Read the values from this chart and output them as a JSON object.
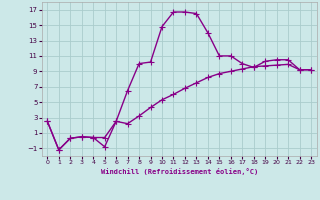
{
  "line1_x": [
    0,
    1,
    2,
    3,
    4,
    5,
    6,
    7,
    8,
    9,
    10,
    11,
    12,
    13,
    14,
    15,
    16,
    17,
    18,
    19,
    20,
    21,
    22,
    23
  ],
  "line1_y": [
    2.5,
    -1.2,
    0.3,
    0.5,
    0.4,
    -0.8,
    2.5,
    6.5,
    10.0,
    10.2,
    14.8,
    16.7,
    16.7,
    16.5,
    14.0,
    11.0,
    11.0,
    10.0,
    9.5,
    10.3,
    10.5,
    10.5,
    9.2,
    9.2
  ],
  "line2_x": [
    0,
    1,
    2,
    3,
    4,
    5,
    6,
    7,
    8,
    9,
    10,
    11,
    12,
    13,
    14,
    15,
    16,
    17,
    18,
    19,
    20,
    21,
    22,
    23
  ],
  "line2_y": [
    2.5,
    -1.2,
    0.3,
    0.5,
    0.4,
    0.4,
    2.5,
    2.2,
    3.2,
    4.3,
    5.3,
    6.0,
    6.8,
    7.5,
    8.2,
    8.7,
    9.0,
    9.3,
    9.6,
    9.7,
    9.8,
    9.9,
    9.2,
    9.2
  ],
  "line_color": "#880088",
  "bg_color": "#cce8e8",
  "grid_color": "#aacccc",
  "xlabel": "Windchill (Refroidissement éolien,°C)",
  "ylim": [
    -2.0,
    18.0
  ],
  "xlim": [
    -0.5,
    23.5
  ],
  "yticks": [
    -1,
    1,
    3,
    5,
    7,
    9,
    11,
    13,
    15,
    17
  ],
  "xticks": [
    0,
    1,
    2,
    3,
    4,
    5,
    6,
    7,
    8,
    9,
    10,
    11,
    12,
    13,
    14,
    15,
    16,
    17,
    18,
    19,
    20,
    21,
    22,
    23
  ],
  "marker": "+",
  "markersize": 4,
  "linewidth": 1.0
}
